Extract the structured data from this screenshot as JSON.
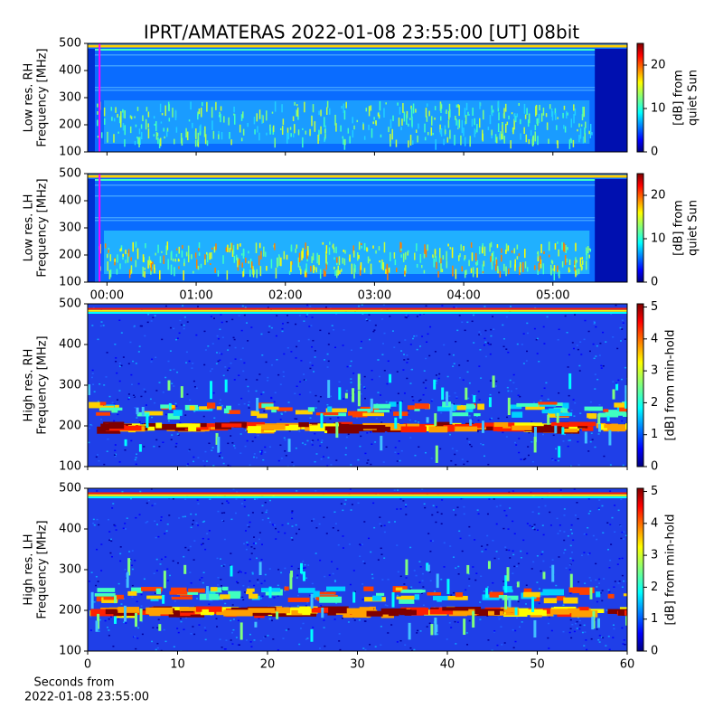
{
  "figure": {
    "title": "IPRT/AMATERAS 2022-01-08 23:55:00 [UT]   08bit"
  },
  "chart_data": [
    {
      "type": "spectrogram",
      "ylabel": [
        "Low res. RH",
        "Frequency [MHz]"
      ],
      "ylim": [
        100,
        500
      ],
      "yticks": [
        100,
        200,
        300,
        400,
        500
      ],
      "clim": [
        0,
        25
      ],
      "cticks": [
        0,
        10,
        20
      ],
      "clabel": [
        "[dB] from",
        "quiet Sun"
      ],
      "marker_x": -5,
      "marker_color": "#ff00ff"
    },
    {
      "type": "spectrogram",
      "ylabel": [
        "Low res. LH",
        "Frequency [MHz]"
      ],
      "ylim": [
        100,
        500
      ],
      "yticks": [
        100,
        200,
        300,
        400,
        500
      ],
      "clim": [
        0,
        25
      ],
      "cticks": [
        0,
        10,
        20
      ],
      "clabel": [
        "[dB] from",
        "quiet Sun"
      ],
      "marker_x": -5,
      "marker_color": "#ff00ff",
      "xlim": [
        -13,
        350
      ],
      "xticks": [
        {
          "value": 0,
          "label": "00:00"
        },
        {
          "value": 60,
          "label": "01:00"
        },
        {
          "value": 120,
          "label": "02:00"
        },
        {
          "value": 180,
          "label": "03:00"
        },
        {
          "value": 240,
          "label": "04:00"
        },
        {
          "value": 300,
          "label": "05:00"
        }
      ]
    },
    {
      "type": "spectrogram",
      "ylabel": [
        "High res. RH",
        "Frequency [MHz]"
      ],
      "ylim": [
        100,
        500
      ],
      "yticks": [
        100,
        200,
        300,
        400,
        500
      ],
      "clim": [
        0,
        5.1
      ],
      "cticks": [
        0,
        1,
        2,
        3,
        4,
        5
      ],
      "clabel": [
        "[dB] from min-hold"
      ]
    },
    {
      "type": "spectrogram",
      "ylabel": [
        "High res. LH",
        "Frequency [MHz]"
      ],
      "ylim": [
        100,
        500
      ],
      "yticks": [
        100,
        200,
        300,
        400,
        500
      ],
      "clim": [
        0,
        5.1
      ],
      "cticks": [
        0,
        1,
        2,
        3,
        4,
        5
      ],
      "clabel": [
        "[dB] from min-hold"
      ],
      "xlim": [
        0,
        60
      ],
      "xticks": [
        0,
        10,
        20,
        30,
        40,
        50,
        60
      ],
      "xlabel": [
        "Seconds from",
        "2022-01-08 23:55:00"
      ]
    }
  ]
}
